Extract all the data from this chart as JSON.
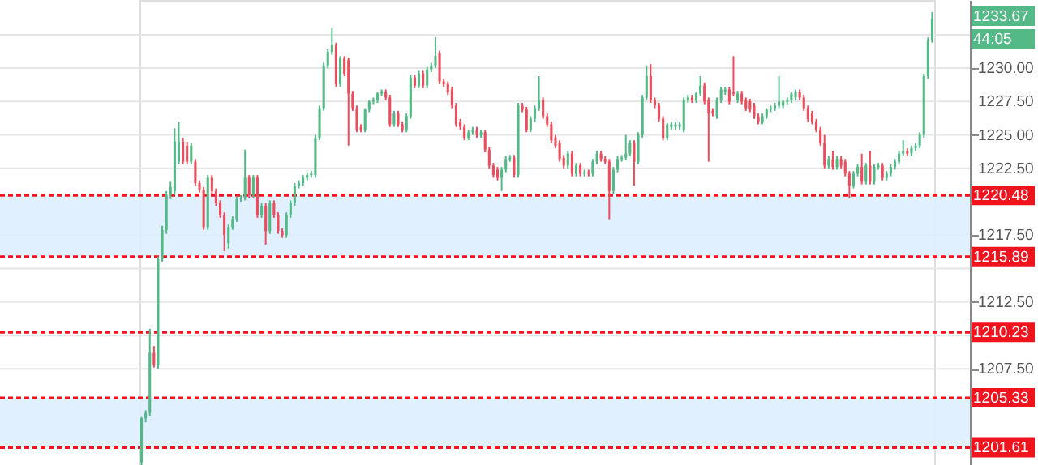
{
  "chart_data": {
    "type": "candlestick",
    "categories": [
      null,
      null,
      null,
      null,
      null,
      null,
      null,
      null,
      null,
      null,
      null,
      null,
      null,
      null,
      null,
      null,
      null,
      null,
      null,
      null,
      null,
      null,
      null,
      null,
      null,
      null,
      null,
      null,
      null,
      null,
      null,
      null,
      null,
      null,
      null,
      null,
      null,
      null,
      null,
      null,
      null,
      null,
      null,
      null,
      null,
      null,
      null,
      null,
      null,
      null,
      null,
      null,
      null,
      null,
      null,
      null,
      null,
      null,
      null,
      null,
      null,
      null,
      null,
      null,
      null,
      null,
      null,
      null,
      null,
      null,
      null,
      null,
      null,
      null,
      null,
      null,
      null,
      null,
      null,
      null,
      null,
      null,
      null,
      null,
      null,
      null,
      null,
      null,
      null,
      null,
      null,
      null,
      null,
      null,
      null,
      null,
      null,
      null,
      null,
      null,
      null,
      null,
      null,
      null,
      null,
      null,
      null,
      null,
      null,
      null,
      null,
      null,
      null,
      null,
      null,
      null,
      null,
      null,
      null,
      null,
      null,
      null,
      null,
      null,
      null,
      null,
      null,
      null,
      null,
      null,
      null,
      null,
      null,
      null,
      null,
      null,
      null,
      null,
      null,
      null,
      null,
      null,
      null,
      null,
      null,
      null,
      null,
      null,
      null,
      null,
      null,
      null,
      null,
      null,
      null,
      null,
      null,
      null,
      null,
      null,
      null,
      null,
      null,
      null,
      null,
      null,
      null,
      null,
      null,
      null,
      null,
      null,
      null,
      null,
      null,
      null,
      null,
      null,
      null,
      null,
      null,
      null,
      null,
      null,
      null,
      null,
      null,
      null,
      null,
      null,
      null,
      null
    ],
    "ohlc": [
      [
        1200.5,
        1203.9,
        1200.3,
        1203.8
      ],
      [
        1203.8,
        1204.4,
        1203.5,
        1204.2
      ],
      [
        1204.2,
        1210.5,
        1204.0,
        1208.7
      ],
      [
        1208.7,
        1209.2,
        1207.6,
        1207.8
      ],
      [
        1207.8,
        1215.9,
        1207.5,
        1215.7
      ],
      [
        1215.7,
        1218.2,
        1215.5,
        1217.9
      ],
      [
        1217.9,
        1220.8,
        1217.6,
        1220.5
      ],
      [
        1220.5,
        1221.5,
        1220.2,
        1221.1
      ],
      [
        1220.8,
        1225.5,
        1220.5,
        1224.5
      ],
      [
        1223.0,
        1226.0,
        1222.8,
        1224.5
      ],
      [
        1224.5,
        1224.8,
        1222.8,
        1223.0
      ],
      [
        1224.2,
        1224.5,
        1222.8,
        1223.0
      ],
      [
        1223.0,
        1224.4,
        1222.8,
        1224.2
      ],
      [
        1223.0,
        1223.2,
        1221.2,
        1221.4
      ],
      [
        1221.4,
        1221.6,
        1220.7,
        1220.9
      ],
      [
        1220.9,
        1221.1,
        1217.9,
        1218.1
      ],
      [
        1218.1,
        1222.0,
        1217.9,
        1221.8
      ],
      [
        1221.8,
        1222.0,
        1220.6,
        1220.8
      ],
      [
        1220.8,
        1221.0,
        1219.7,
        1219.9
      ],
      [
        1219.9,
        1220.1,
        1218.8,
        1219.0
      ],
      [
        1219.0,
        1219.2,
        1216.3,
        1217.5
      ],
      [
        1216.9,
        1218.3,
        1216.5,
        1218.1
      ],
      [
        1218.1,
        1218.9,
        1217.9,
        1218.7
      ],
      [
        1218.7,
        1220.4,
        1218.5,
        1220.2
      ],
      [
        1220.2,
        1220.5,
        1220.0,
        1220.3
      ],
      [
        1220.3,
        1223.9,
        1220.1,
        1221.8
      ],
      [
        1221.8,
        1222.0,
        1220.3,
        1220.5
      ],
      [
        1220.5,
        1222.0,
        1220.3,
        1221.8
      ],
      [
        1221.8,
        1222.0,
        1218.8,
        1219.0
      ],
      [
        1219.0,
        1219.9,
        1218.8,
        1219.7
      ],
      [
        1219.7,
        1219.9,
        1216.8,
        1217.8
      ],
      [
        1217.8,
        1220.1,
        1217.6,
        1219.9
      ],
      [
        1219.9,
        1220.1,
        1218.8,
        1219.0
      ],
      [
        1219.0,
        1219.2,
        1217.6,
        1217.8
      ],
      [
        1217.8,
        1218.0,
        1217.3,
        1217.5
      ],
      [
        1217.5,
        1219.2,
        1217.3,
        1219.0
      ],
      [
        1219.0,
        1220.1,
        1218.8,
        1219.9
      ],
      [
        1219.9,
        1221.4,
        1219.7,
        1221.2
      ],
      [
        1221.2,
        1221.6,
        1221.0,
        1221.4
      ],
      [
        1221.4,
        1222.0,
        1221.2,
        1221.8
      ],
      [
        1221.8,
        1222.2,
        1221.6,
        1222.0
      ],
      [
        1222.0,
        1222.3,
        1221.8,
        1222.1
      ],
      [
        1222.0,
        1225.0,
        1221.8,
        1224.8
      ],
      [
        1224.8,
        1227.2,
        1224.6,
        1227.0
      ],
      [
        1227.0,
        1230.4,
        1226.8,
        1230.2
      ],
      [
        1230.2,
        1231.4,
        1230.0,
        1231.2
      ],
      [
        1231.2,
        1233.0,
        1231.0,
        1231.7
      ],
      [
        1231.7,
        1231.9,
        1228.6,
        1228.8
      ],
      [
        1228.8,
        1230.9,
        1228.6,
        1230.7
      ],
      [
        1230.7,
        1230.9,
        1229.4,
        1229.6
      ],
      [
        1230.6,
        1230.8,
        1224.2,
        1228.1
      ],
      [
        1228.1,
        1228.3,
        1226.8,
        1227.0
      ],
      [
        1227.0,
        1227.2,
        1225.2,
        1225.4
      ],
      [
        1225.6,
        1225.8,
        1225.2,
        1225.4
      ],
      [
        1225.4,
        1227.0,
        1225.2,
        1226.9
      ],
      [
        1226.9,
        1227.6,
        1226.7,
        1227.5
      ],
      [
        1227.5,
        1227.8,
        1227.3,
        1227.6
      ],
      [
        1227.6,
        1228.2,
        1227.4,
        1228.1
      ],
      [
        1228.1,
        1228.4,
        1227.9,
        1228.2
      ],
      [
        1228.2,
        1228.4,
        1227.6,
        1227.8
      ],
      [
        1227.8,
        1228.0,
        1225.6,
        1225.8
      ],
      [
        1225.8,
        1226.8,
        1225.6,
        1226.6
      ],
      [
        1226.6,
        1226.8,
        1225.6,
        1225.8
      ],
      [
        1225.8,
        1226.0,
        1225.2,
        1225.4
      ],
      [
        1225.4,
        1226.6,
        1225.2,
        1226.4
      ],
      [
        1226.4,
        1229.5,
        1226.2,
        1229.3
      ],
      [
        1229.3,
        1229.5,
        1228.5,
        1228.7
      ],
      [
        1228.7,
        1229.8,
        1228.5,
        1229.6
      ],
      [
        1229.6,
        1229.8,
        1228.5,
        1228.7
      ],
      [
        1228.7,
        1230.1,
        1228.5,
        1229.9
      ],
      [
        1229.9,
        1230.4,
        1229.7,
        1230.2
      ],
      [
        1230.2,
        1232.3,
        1230.0,
        1230.9
      ],
      [
        1231.1,
        1231.3,
        1228.8,
        1229.0
      ],
      [
        1229.0,
        1229.2,
        1228.6,
        1228.8
      ],
      [
        1228.8,
        1229.0,
        1228.0,
        1228.2
      ],
      [
        1228.4,
        1228.6,
        1227.0,
        1227.2
      ],
      [
        1227.2,
        1227.4,
        1225.6,
        1225.8
      ],
      [
        1226.0,
        1226.2,
        1225.4,
        1225.6
      ],
      [
        1225.6,
        1225.8,
        1224.6,
        1224.8
      ],
      [
        1224.8,
        1225.4,
        1224.6,
        1225.2
      ],
      [
        1225.2,
        1225.6,
        1225.0,
        1225.4
      ],
      [
        1225.4,
        1225.6,
        1224.8,
        1225.0
      ],
      [
        1225.0,
        1225.4,
        1224.8,
        1225.2
      ],
      [
        1225.2,
        1225.4,
        1223.7,
        1223.9
      ],
      [
        1223.9,
        1224.1,
        1222.5,
        1222.7
      ],
      [
        1222.7,
        1222.9,
        1221.8,
        1222.0
      ],
      [
        1222.4,
        1222.6,
        1221.6,
        1221.8
      ],
      [
        1221.8,
        1222.6,
        1220.8,
        1222.4
      ],
      [
        1222.4,
        1223.4,
        1222.2,
        1223.2
      ],
      [
        1223.2,
        1223.5,
        1223.0,
        1223.3
      ],
      [
        1223.3,
        1223.5,
        1221.8,
        1222.0
      ],
      [
        1222.0,
        1227.4,
        1221.8,
        1227.2
      ],
      [
        1227.2,
        1227.4,
        1226.7,
        1226.9
      ],
      [
        1226.9,
        1227.1,
        1225.2,
        1225.4
      ],
      [
        1225.4,
        1226.4,
        1225.2,
        1226.2
      ],
      [
        1226.2,
        1227.2,
        1226.0,
        1227.0
      ],
      [
        1227.0,
        1229.4,
        1226.8,
        1227.6
      ],
      [
        1227.6,
        1227.8,
        1226.2,
        1226.4
      ],
      [
        1226.4,
        1226.6,
        1225.6,
        1225.8
      ],
      [
        1225.8,
        1226.0,
        1224.4,
        1224.6
      ],
      [
        1224.8,
        1225.0,
        1224.0,
        1224.2
      ],
      [
        1224.4,
        1224.6,
        1223.0,
        1223.2
      ],
      [
        1223.3,
        1223.5,
        1222.5,
        1222.7
      ],
      [
        1222.7,
        1223.8,
        1222.5,
        1223.6
      ],
      [
        1223.6,
        1223.8,
        1221.9,
        1222.1
      ],
      [
        1222.1,
        1222.9,
        1221.9,
        1222.7
      ],
      [
        1222.7,
        1222.9,
        1221.9,
        1222.1
      ],
      [
        1222.1,
        1222.4,
        1221.9,
        1222.2
      ],
      [
        1222.2,
        1222.4,
        1221.9,
        1222.1
      ],
      [
        1222.1,
        1223.2,
        1221.9,
        1223.0
      ],
      [
        1223.0,
        1223.8,
        1222.8,
        1223.6
      ],
      [
        1223.6,
        1223.8,
        1223.0,
        1223.2
      ],
      [
        1223.2,
        1223.4,
        1222.8,
        1223.0
      ],
      [
        1223.0,
        1223.2,
        1218.7,
        1220.8
      ],
      [
        1220.8,
        1222.6,
        1220.6,
        1222.4
      ],
      [
        1222.4,
        1223.4,
        1222.2,
        1223.2
      ],
      [
        1223.2,
        1223.5,
        1223.0,
        1223.3
      ],
      [
        1223.3,
        1225.0,
        1223.1,
        1223.6
      ],
      [
        1223.6,
        1224.6,
        1223.4,
        1224.4
      ],
      [
        1224.4,
        1224.6,
        1221.2,
        1223.0
      ],
      [
        1223.0,
        1225.2,
        1222.8,
        1225.0
      ],
      [
        1225.0,
        1228.0,
        1224.8,
        1227.8
      ],
      [
        1227.8,
        1230.2,
        1227.6,
        1229.4
      ],
      [
        1229.4,
        1230.3,
        1227.4,
        1227.6
      ],
      [
        1227.6,
        1227.8,
        1227.0,
        1227.2
      ],
      [
        1227.2,
        1227.4,
        1226.0,
        1226.2
      ],
      [
        1226.2,
        1226.4,
        1224.6,
        1224.8
      ],
      [
        1224.8,
        1225.9,
        1224.6,
        1225.8
      ],
      [
        1225.6,
        1226.0,
        1225.4,
        1225.8
      ],
      [
        1225.6,
        1226.0,
        1225.4,
        1225.8
      ],
      [
        1225.6,
        1226.0,
        1225.4,
        1225.8
      ],
      [
        1225.4,
        1227.8,
        1225.2,
        1227.6
      ],
      [
        1227.6,
        1228.0,
        1227.4,
        1227.8
      ],
      [
        1227.8,
        1228.0,
        1227.4,
        1227.6
      ],
      [
        1227.6,
        1228.2,
        1227.4,
        1228.1
      ],
      [
        1228.1,
        1229.4,
        1227.9,
        1228.7
      ],
      [
        1228.7,
        1228.9,
        1227.3,
        1227.5
      ],
      [
        1227.6,
        1227.8,
        1223.0,
        1226.6
      ],
      [
        1226.8,
        1227.0,
        1226.4,
        1226.6
      ],
      [
        1226.4,
        1227.8,
        1226.2,
        1227.6
      ],
      [
        1227.6,
        1228.6,
        1227.4,
        1228.4
      ],
      [
        1228.2,
        1228.6,
        1228.0,
        1228.4
      ],
      [
        1228.4,
        1228.6,
        1227.3,
        1227.5
      ],
      [
        1228.2,
        1230.9,
        1227.9,
        1228.1
      ],
      [
        1227.6,
        1228.3,
        1227.4,
        1228.1
      ],
      [
        1228.1,
        1228.3,
        1227.3,
        1227.5
      ],
      [
        1227.6,
        1227.8,
        1226.8,
        1227.0
      ],
      [
        1227.5,
        1227.7,
        1226.7,
        1226.9
      ],
      [
        1227.2,
        1227.4,
        1226.2,
        1226.4
      ],
      [
        1226.4,
        1226.6,
        1225.8,
        1226.0
      ],
      [
        1226.0,
        1226.6,
        1225.8,
        1226.4
      ],
      [
        1226.4,
        1227.0,
        1226.2,
        1226.9
      ],
      [
        1226.9,
        1227.2,
        1226.7,
        1227.0
      ],
      [
        1227.0,
        1227.4,
        1226.8,
        1227.2
      ],
      [
        1227.2,
        1229.4,
        1227.0,
        1227.5
      ],
      [
        1227.2,
        1227.6,
        1227.0,
        1227.5
      ],
      [
        1227.5,
        1227.8,
        1227.3,
        1227.6
      ],
      [
        1227.6,
        1228.2,
        1227.4,
        1228.1
      ],
      [
        1227.8,
        1228.4,
        1227.6,
        1228.2
      ],
      [
        1228.2,
        1228.4,
        1227.6,
        1227.8
      ],
      [
        1227.8,
        1228.0,
        1226.8,
        1227.0
      ],
      [
        1227.0,
        1227.2,
        1226.0,
        1226.2
      ],
      [
        1226.6,
        1226.8,
        1225.8,
        1226.0
      ],
      [
        1226.0,
        1226.2,
        1225.2,
        1225.4
      ],
      [
        1225.4,
        1225.6,
        1224.2,
        1224.4
      ],
      [
        1224.4,
        1225.0,
        1222.5,
        1222.7
      ],
      [
        1222.7,
        1223.4,
        1222.5,
        1223.2
      ],
      [
        1223.2,
        1223.8,
        1222.4,
        1222.6
      ],
      [
        1222.6,
        1223.4,
        1222.4,
        1223.2
      ],
      [
        1223.2,
        1223.4,
        1222.5,
        1222.7
      ],
      [
        1223.0,
        1223.2,
        1221.9,
        1222.1
      ],
      [
        1222.1,
        1222.3,
        1220.3,
        1221.2
      ],
      [
        1221.2,
        1222.3,
        1221.0,
        1222.1
      ],
      [
        1222.1,
        1222.8,
        1221.9,
        1222.6
      ],
      [
        1222.6,
        1223.6,
        1221.3,
        1221.5
      ],
      [
        1221.5,
        1222.9,
        1221.3,
        1222.7
      ],
      [
        1222.7,
        1223.8,
        1221.3,
        1221.5
      ],
      [
        1221.5,
        1222.8,
        1221.3,
        1222.6
      ],
      [
        1222.6,
        1222.9,
        1222.4,
        1222.7
      ],
      [
        1222.7,
        1222.9,
        1221.6,
        1221.8
      ],
      [
        1221.8,
        1222.3,
        1221.6,
        1222.1
      ],
      [
        1222.1,
        1222.8,
        1221.9,
        1222.6
      ],
      [
        1222.6,
        1223.2,
        1222.4,
        1223.0
      ],
      [
        1223.0,
        1223.8,
        1222.8,
        1223.6
      ],
      [
        1223.6,
        1224.6,
        1223.4,
        1223.8
      ],
      [
        1223.8,
        1224.0,
        1223.4,
        1223.6
      ],
      [
        1223.6,
        1224.2,
        1223.4,
        1224.0
      ],
      [
        1224.0,
        1224.4,
        1223.8,
        1224.2
      ],
      [
        1224.2,
        1225.2,
        1224.0,
        1225.0
      ],
      [
        1225.0,
        1229.6,
        1224.8,
        1229.4
      ],
      [
        1229.4,
        1232.3,
        1229.2,
        1232.1
      ],
      [
        1232.1,
        1234.2,
        1231.9,
        1233.67
      ]
    ],
    "ylim": [
      1200.3,
      1235.1
    ],
    "yticks": [
      {
        "value": 1207.5,
        "label": "1207.50"
      },
      {
        "value": 1210,
        "label": null
      },
      {
        "value": 1212.5,
        "label": "1212.50"
      },
      {
        "value": 1215,
        "label": null
      },
      {
        "value": 1217.5,
        "label": "1217.50"
      },
      {
        "value": 1222.5,
        "label": "1222.50"
      },
      {
        "value": 1225,
        "label": "1225.00"
      },
      {
        "value": 1227.5,
        "label": "1227.50"
      },
      {
        "value": 1230,
        "label": "1230.00"
      },
      {
        "value": 1232.5,
        "label": null
      }
    ],
    "grid": "y",
    "tick_labels": "y",
    "ref_lines": [
      {
        "axis": "y",
        "value": 1220.48,
        "label": "1220.48",
        "color": "#f0141e",
        "line_style": "dashed"
      },
      {
        "axis": "y",
        "value": 1215.89,
        "label": "1215.89",
        "color": "#f0141e",
        "line_style": "dashed"
      },
      {
        "axis": "y",
        "value": 1210.23,
        "label": "1210.23",
        "color": "#f0141e",
        "line_style": "dashed"
      },
      {
        "axis": "y",
        "value": 1205.33,
        "label": "1205.33",
        "color": "#f0141e",
        "line_style": "dashed"
      },
      {
        "axis": "y",
        "value": 1201.61,
        "label": "1201.61",
        "color": "#f0141e",
        "line_style": "dashed"
      }
    ],
    "bands": [
      {
        "axis": "y",
        "from": 1215.89,
        "to": 1220.48,
        "color": "#ddeeff"
      },
      {
        "axis": "y",
        "from": 1201.61,
        "to": 1205.33,
        "color": "#ddeeff"
      }
    ],
    "annotations": [
      "1233.67",
      "44:05"
    ]
  }
}
